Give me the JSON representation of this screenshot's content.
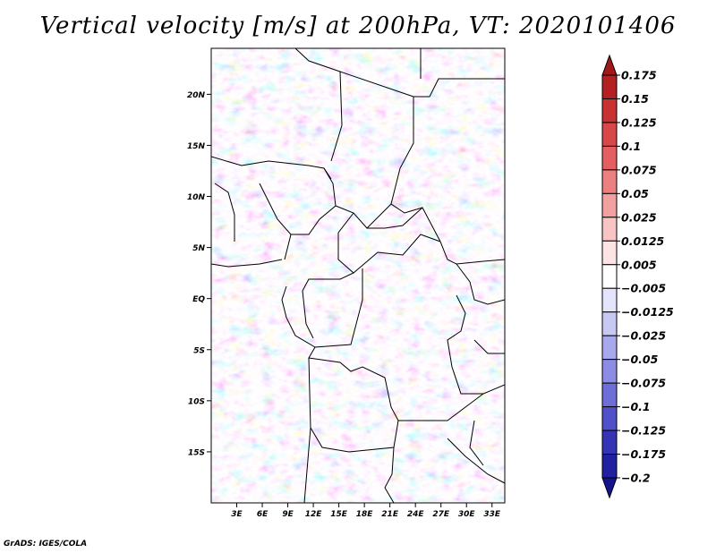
{
  "chart_data": {
    "type": "heatmap",
    "title": "Vertical velocity [m/s] at 200hPa, VT: 2020101406",
    "variable": "Vertical velocity",
    "units": "m/s",
    "level": "200hPa",
    "valid_time": "2020101406",
    "xlabel": "",
    "ylabel": "",
    "lon_range": [
      0,
      34.5
    ],
    "lat_range": [
      -20,
      24.5
    ],
    "x_ticks": [
      "3E",
      "6E",
      "9E",
      "12E",
      "15E",
      "18E",
      "21E",
      "24E",
      "27E",
      "30E",
      "33E"
    ],
    "x_tick_values": [
      3,
      6,
      9,
      12,
      15,
      18,
      21,
      24,
      27,
      30,
      33
    ],
    "y_ticks": [
      "20N",
      "15N",
      "10N",
      "5N",
      "EQ",
      "5S",
      "10S",
      "15S"
    ],
    "y_tick_values": [
      20,
      15,
      10,
      5,
      0,
      -5,
      -10,
      -15
    ],
    "colorbar": {
      "labels": [
        "0.175",
        "0.15",
        "0.125",
        "0.1",
        "0.075",
        "0.05",
        "0.025",
        "0.0125",
        "0.005",
        "−0.005",
        "−0.0125",
        "−0.025",
        "−0.05",
        "−0.075",
        "−0.1",
        "−0.125",
        "−0.175",
        "−0.2"
      ],
      "colors": [
        "#a01818",
        "#b42020",
        "#c83232",
        "#d84848",
        "#e46060",
        "#ec8080",
        "#f3a0a0",
        "#f8c4c4",
        "#fce4e4",
        "#ffffff",
        "#e4e4fc",
        "#c8c8f4",
        "#a8a8ec",
        "#8c8ce4",
        "#6e6ed8",
        "#5050c8",
        "#3434b4",
        "#2020a0",
        "#14148c"
      ]
    },
    "grid": false
  },
  "footer": "GrADS: IGES/COLA"
}
